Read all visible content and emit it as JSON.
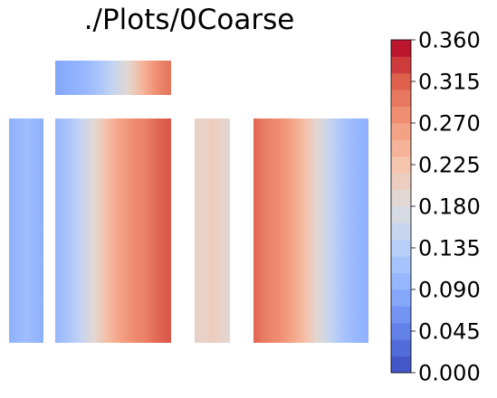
{
  "chart_data": {
    "type": "heatmap",
    "title": "./Plots/0Coarse",
    "colormap": "coolwarm",
    "colorbar": {
      "min": 0.0,
      "max": 0.36,
      "levels": 20,
      "ticks": [
        "0.000",
        "0.045",
        "0.090",
        "0.135",
        "0.180",
        "0.225",
        "0.270",
        "0.315",
        "0.360"
      ],
      "placement": "right"
    },
    "panels": [
      {
        "name": "top-strip",
        "orientation": "horizontal",
        "profile": [
          0.08,
          0.09,
          0.1,
          0.12,
          0.15,
          0.19,
          0.24,
          0.28,
          0.3
        ]
      },
      {
        "name": "left-narrow-column",
        "orientation": "vertical",
        "profile": [
          0.09,
          0.1,
          0.11,
          0.1,
          0.09
        ]
      },
      {
        "name": "large-column-left",
        "orientation": "vertical",
        "profile": [
          0.1,
          0.12,
          0.15,
          0.19,
          0.23,
          0.26,
          0.28,
          0.29,
          0.31,
          0.32
        ]
      },
      {
        "name": "middle-narrow-column",
        "orientation": "vertical",
        "profile": [
          0.2,
          0.2,
          0.21,
          0.2,
          0.19
        ]
      },
      {
        "name": "large-column-right",
        "orientation": "vertical",
        "profile": [
          0.31,
          0.29,
          0.28,
          0.26,
          0.23,
          0.19,
          0.15,
          0.12,
          0.1,
          0.09
        ]
      }
    ]
  }
}
